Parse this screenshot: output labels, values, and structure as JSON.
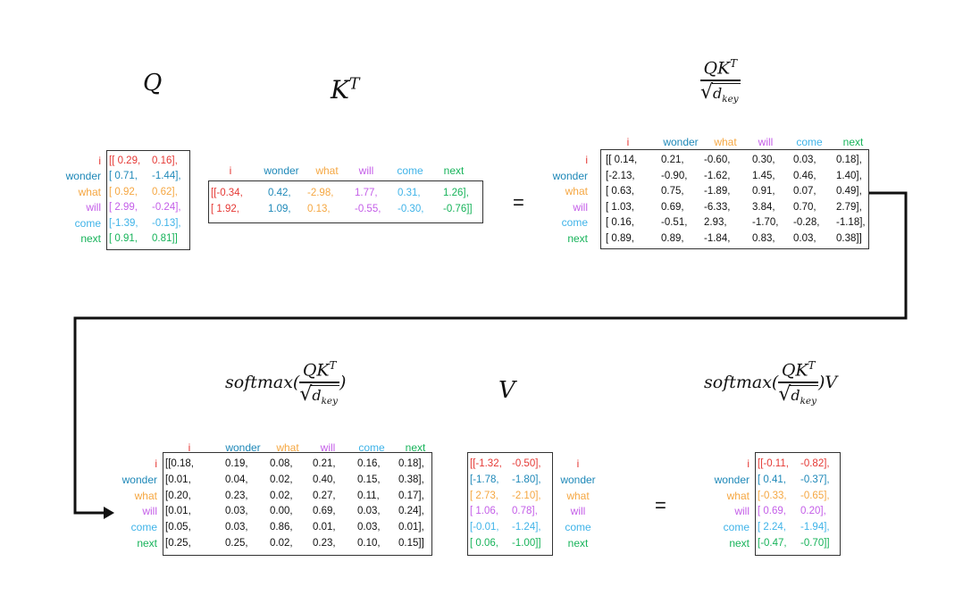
{
  "colors": {
    "i": "#e53935",
    "wonder": "#1e88b8",
    "what": "#f5a742",
    "will": "#c45ee8",
    "come": "#3fb3e8",
    "next": "#17b35a",
    "ink": "#111111"
  },
  "tokens": [
    "i",
    "wonder",
    "what",
    "will",
    "come",
    "next"
  ],
  "titles": {
    "q": "Q",
    "kt_base": "K",
    "kt_sup": "T",
    "frac_num_base": "QK",
    "frac_num_sup": "T",
    "frac_den_base": "d",
    "frac_den_sub": "key",
    "softmax_prefix": "softmax(",
    "softmax_close": ")",
    "softmax_close_v": ")V",
    "v": "V"
  },
  "equals": "=",
  "q_matrix": [
    [
      "[[ 0.29,",
      "0.16],"
    ],
    [
      "[ 0.71,",
      "-1.44],"
    ],
    [
      "[ 0.92,",
      "0.62],"
    ],
    [
      "[ 2.99,",
      "-0.24],"
    ],
    [
      "[-1.39,",
      "-0.13],"
    ],
    [
      "[ 0.91,",
      "0.81]]"
    ]
  ],
  "kt_matrix": [
    [
      "[[-0.34,",
      "0.42,",
      "-2.98,",
      "1.77,",
      "0.31,",
      "1.26],"
    ],
    [
      "[ 1.92,",
      "1.09,",
      "0.13,",
      "-0.55,",
      "-0.30,",
      "-0.76]]"
    ]
  ],
  "scaled_matrix": [
    [
      "[[ 0.14,",
      "0.21,",
      "-0.60,",
      "0.30,",
      "0.03,",
      "0.18],"
    ],
    [
      "[-2.13,",
      "-0.90,",
      "-1.62,",
      "1.45,",
      "0.46,",
      "1.40],"
    ],
    [
      "[ 0.63,",
      "0.75,",
      "-1.89,",
      "0.91,",
      "0.07,",
      "0.49],"
    ],
    [
      "[ 1.03,",
      "0.69,",
      "-6.33,",
      "3.84,",
      "0.70,",
      "2.79],"
    ],
    [
      "[ 0.16,",
      "-0.51,",
      "2.93,",
      "-1.70,",
      "-0.28,",
      "-1.18],"
    ],
    [
      "[ 0.89,",
      "0.89,",
      "-1.84,",
      "0.83,",
      "0.03,",
      "0.38]]"
    ]
  ],
  "softmax_matrix": [
    [
      "[[0.18,",
      "0.19,",
      "0.08,",
      "0.21,",
      "0.16,",
      "0.18],"
    ],
    [
      "[0.01,",
      "0.04,",
      "0.02,",
      "0.40,",
      "0.15,",
      "0.38],"
    ],
    [
      "[0.20,",
      "0.23,",
      "0.02,",
      "0.27,",
      "0.11,",
      "0.17],"
    ],
    [
      "[0.01,",
      "0.03,",
      "0.00,",
      "0.69,",
      "0.03,",
      "0.24],"
    ],
    [
      "[0.05,",
      "0.03,",
      "0.86,",
      "0.01,",
      "0.03,",
      "0.01],"
    ],
    [
      "[0.25,",
      "0.25,",
      "0.02,",
      "0.23,",
      "0.10,",
      "0.15]]"
    ]
  ],
  "v_matrix": [
    [
      "[[-1.32,",
      "-0.50],"
    ],
    [
      "[-1.78,",
      "-1.80],"
    ],
    [
      "[ 2.73,",
      "-2.10],"
    ],
    [
      "[ 1.06,",
      "0.78],"
    ],
    [
      "[-0.01,",
      "-1.24],"
    ],
    [
      "[ 0.06,",
      "-1.00]]"
    ]
  ],
  "output_matrix": [
    [
      "[[-0.11,",
      "-0.82],"
    ],
    [
      "[ 0.41,",
      "-0.37],"
    ],
    [
      "[-0.33,",
      "-0.65],"
    ],
    [
      "[ 0.69,",
      "0.20],"
    ],
    [
      "[ 2.24,",
      "-1.94],"
    ],
    [
      "[-0.47,",
      "-0.70]]"
    ]
  ]
}
